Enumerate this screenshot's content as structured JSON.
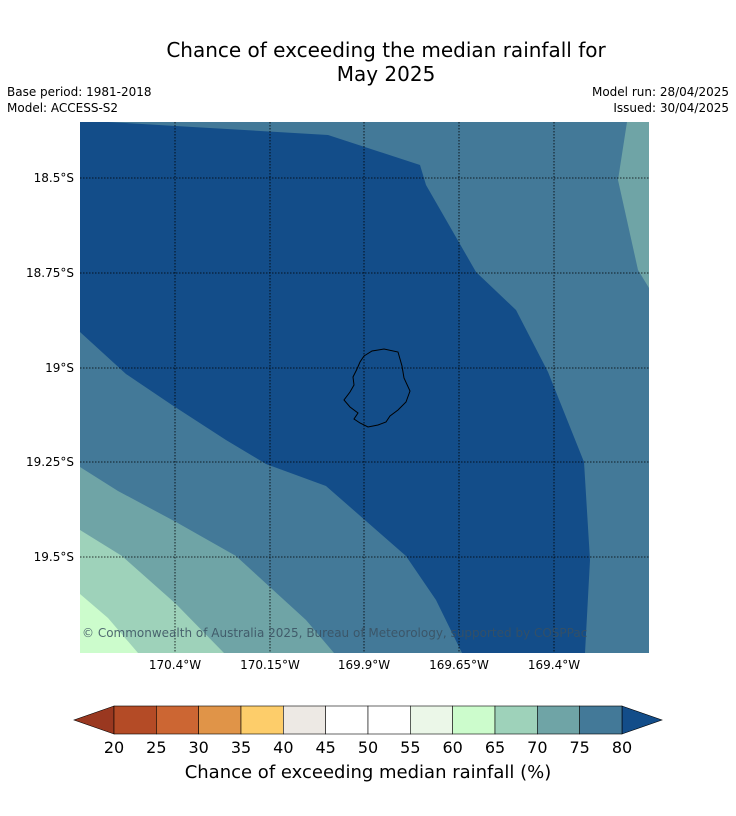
{
  "title_line1": "Chance of exceeding the median rainfall for",
  "title_line2": "May 2025",
  "base_period": "Base period: 1981-2018",
  "model": "Model: ACCESS-S2",
  "model_run": "Model run: 28/04/2025",
  "issued": "Issued: 30/04/2025",
  "copyright": "© Commonwealth of Australia 2025, Bureau of Meteorology, supported by COSPPac",
  "lat_labels": [
    "18.5°S",
    "18.75°S",
    "19°S",
    "19.25°S",
    "19.5°S"
  ],
  "lon_labels": [
    "170.4°W",
    "170.15°W",
    "169.9°W",
    "169.65°W",
    "169.4°W"
  ],
  "colorbar": {
    "ticks": [
      "20",
      "25",
      "30",
      "35",
      "40",
      "45",
      "50",
      "55",
      "60",
      "65",
      "70",
      "75",
      "80"
    ],
    "colors": [
      "#b44b26",
      "#cc6633",
      "#e09448",
      "#fdcd6a",
      "#ede9e4",
      "#ffffff",
      "#ffffff",
      "#ebf7e8",
      "#ccfccc",
      "#9ed2ba",
      "#6fa4a6",
      "#437998"
    ],
    "under_color": "#9a3820",
    "over_color": "#134d89",
    "label": "Chance of exceeding median rainfall (%)"
  }
}
